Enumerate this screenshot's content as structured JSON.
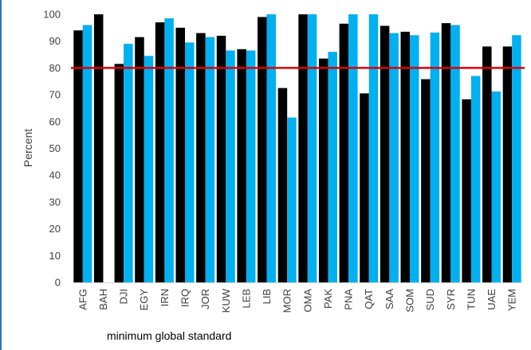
{
  "chart_data": {
    "type": "bar",
    "categories": [
      "AFG",
      "BAH",
      "DJI",
      "EGY",
      "IRN",
      "IRQ",
      "JOR",
      "KUW",
      "LEB",
      "LIB",
      "MOR",
      "OMA",
      "PAK",
      "PNA",
      "QAT",
      "SAA",
      "SOM",
      "SUD",
      "SYR",
      "TUN",
      "UAE",
      "YEM"
    ],
    "series": [
      {
        "values": [
          94,
          100,
          81.5,
          91.5,
          97,
          95,
          93,
          92,
          87,
          99,
          72.5,
          100,
          83.5,
          96.5,
          70.5,
          95.7,
          93.5,
          75.8,
          96.7,
          68.3,
          88,
          88
        ],
        "color": "#000000"
      },
      {
        "values": [
          96,
          null,
          89,
          84.5,
          98.5,
          89.5,
          91.5,
          86.5,
          86.5,
          100,
          61.5,
          100,
          86,
          100,
          100,
          93,
          92.2,
          93.2,
          96,
          77,
          71.2,
          92.2
        ],
        "color": "#00b0f0"
      }
    ],
    "ylabel": "Percent",
    "ylim": [
      0,
      100
    ],
    "yticks": [
      "0",
      "10",
      "20",
      "30",
      "40",
      "50",
      "60",
      "70",
      "80",
      "90",
      "100"
    ],
    "reference_line": {
      "value": 80,
      "color": "#e00000",
      "label": "minimum global standard"
    },
    "grid": false
  }
}
